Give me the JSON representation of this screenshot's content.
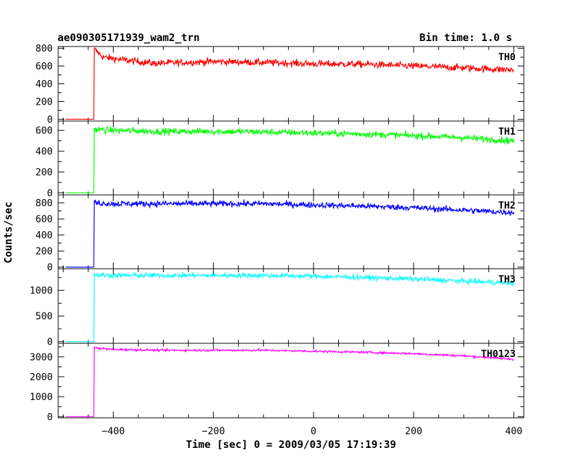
{
  "header": {
    "title": "ae090305171939_wam2_trn",
    "bin_time": "Bin time: 1.0 s"
  },
  "chart_data": {
    "type": "line",
    "title": "ae090305171939_wam2_trn",
    "subtitle": "Bin time: 1.0 s",
    "xlabel": "Time [sec] 0 = 2009/03/05 17:19:39",
    "ylabel": "Counts/sec",
    "xlim": [
      -510,
      420
    ],
    "xticks": [
      -400,
      -200,
      0,
      200,
      400
    ],
    "x_tick_labels": [
      "−400",
      "−200",
      "0",
      "200",
      "400"
    ],
    "bin_seconds": 1.0,
    "x_start": -495,
    "x_end": 400,
    "onset_x": -438,
    "panels": [
      {
        "name": "TH0",
        "color": "#ff0000",
        "ylim": [
          -20,
          820
        ],
        "yticks": [
          0,
          200,
          400,
          600,
          800
        ],
        "pre_level": 0,
        "peak": 790,
        "keypoints": [
          [
            -438,
            790
          ],
          [
            -420,
            700
          ],
          [
            -380,
            670
          ],
          [
            -320,
            630
          ],
          [
            -200,
            650
          ],
          [
            -100,
            640
          ],
          [
            0,
            625
          ],
          [
            100,
            620
          ],
          [
            200,
            600
          ],
          [
            300,
            580
          ],
          [
            400,
            555
          ]
        ],
        "noise": 40
      },
      {
        "name": "TH1",
        "color": "#00ff00",
        "ylim": [
          -20,
          690
        ],
        "yticks": [
          0,
          200,
          400,
          600
        ],
        "pre_level": 0,
        "peak": 620,
        "keypoints": [
          [
            -438,
            610
          ],
          [
            -400,
            600
          ],
          [
            -300,
            590
          ],
          [
            -200,
            590
          ],
          [
            -100,
            585
          ],
          [
            0,
            575
          ],
          [
            100,
            565
          ],
          [
            200,
            550
          ],
          [
            300,
            530
          ],
          [
            400,
            500
          ]
        ],
        "noise": 32
      },
      {
        "name": "TH2",
        "color": "#0000ff",
        "ylim": [
          -20,
          900
        ],
        "yticks": [
          0,
          200,
          400,
          600,
          800
        ],
        "pre_level": 0,
        "peak": 830,
        "keypoints": [
          [
            -438,
            800
          ],
          [
            -400,
            790
          ],
          [
            -300,
            790
          ],
          [
            -200,
            790
          ],
          [
            -100,
            790
          ],
          [
            0,
            775
          ],
          [
            100,
            760
          ],
          [
            200,
            740
          ],
          [
            300,
            710
          ],
          [
            400,
            680
          ]
        ],
        "noise": 38
      },
      {
        "name": "TH3",
        "color": "#00ffff",
        "ylim": [
          -30,
          1420
        ],
        "yticks": [
          0,
          500,
          1000
        ],
        "yticks_labels_only": [
          0,
          500,
          1000
        ],
        "pre_level": 0,
        "peak": 1330,
        "keypoints": [
          [
            -438,
            1300
          ],
          [
            -400,
            1290
          ],
          [
            -300,
            1290
          ],
          [
            -200,
            1290
          ],
          [
            -100,
            1290
          ],
          [
            0,
            1275
          ],
          [
            100,
            1250
          ],
          [
            200,
            1220
          ],
          [
            300,
            1180
          ],
          [
            400,
            1140
          ]
        ],
        "noise": 50
      },
      {
        "name": "TH0123",
        "color": "#ff00ff",
        "ylim": [
          -60,
          3680
        ],
        "yticks": [
          0,
          1000,
          2000,
          3000
        ],
        "pre_level": 0,
        "peak": 3480,
        "keypoints": [
          [
            -438,
            3450
          ],
          [
            -400,
            3370
          ],
          [
            -300,
            3330
          ],
          [
            -200,
            3330
          ],
          [
            -100,
            3330
          ],
          [
            0,
            3280
          ],
          [
            100,
            3230
          ],
          [
            200,
            3160
          ],
          [
            300,
            3050
          ],
          [
            400,
            2880
          ]
        ],
        "noise": 55
      }
    ]
  }
}
